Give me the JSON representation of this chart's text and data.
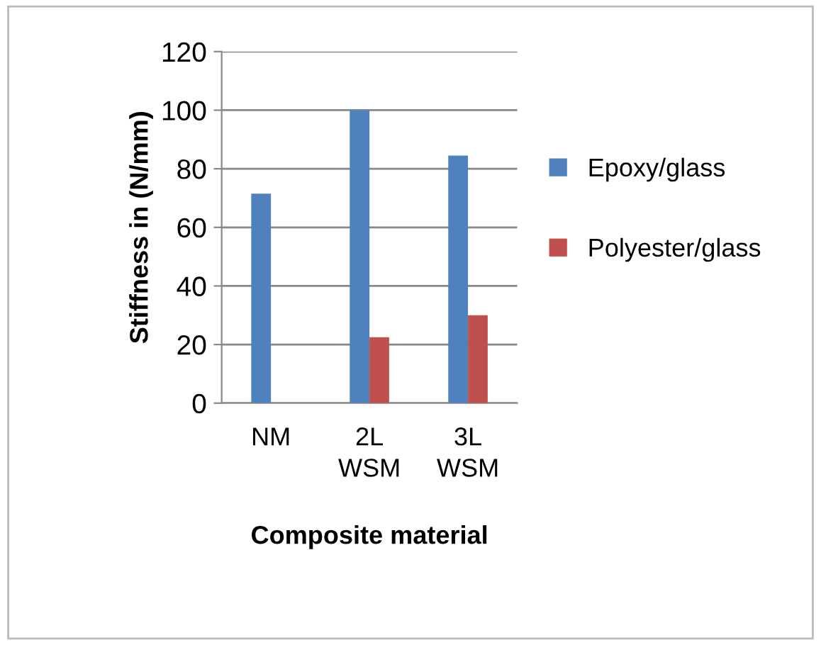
{
  "chart_data": {
    "type": "bar",
    "xlabel": "Composite material",
    "ylabel": "Stiffness in (N/mm)",
    "categories": [
      "NM",
      "2L WSM",
      "3L WSM"
    ],
    "series": [
      {
        "name": "Epoxy/glass",
        "color": "#4f81bd",
        "values": [
          71.5,
          100,
          84.5
        ]
      },
      {
        "name": "Polyester/glass",
        "color": "#c0504d",
        "values": [
          null,
          22.5,
          30
        ]
      }
    ],
    "ylim": [
      0,
      120
    ],
    "yticks": [
      0,
      20,
      40,
      60,
      80,
      100,
      120
    ],
    "grid": "y",
    "legend": "right"
  }
}
